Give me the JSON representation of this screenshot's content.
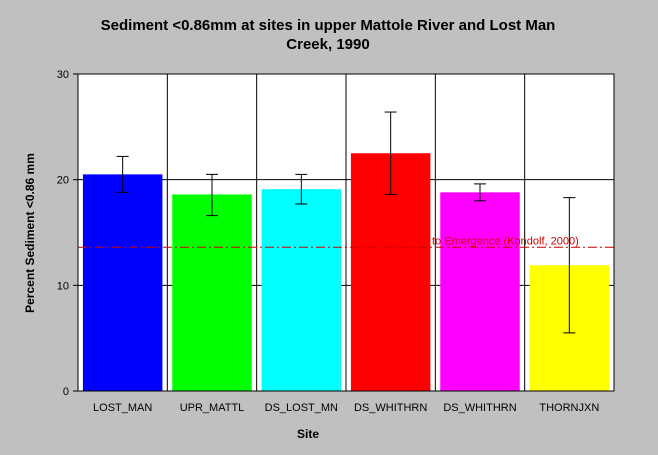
{
  "chart_data": {
    "type": "bar",
    "title_line1": "Sediment <0.86mm at sites in upper Mattole River and Lost Man",
    "title_line2": "Creek, 1990",
    "xlabel": "Site",
    "ylabel": "Percent Sediment <0.86 mm",
    "ylim": [
      0,
      30
    ],
    "yticks": [
      0,
      10,
      20,
      30
    ],
    "grid": true,
    "categories": [
      "LOST_MAN",
      "UPR_MATTL",
      "DS_LOST_MN",
      "DS_WHITHRN",
      "DS_WHITHRN",
      "THORNJXN"
    ],
    "values": [
      20.5,
      18.6,
      19.1,
      22.5,
      18.8,
      11.9
    ],
    "error_low": [
      18.8,
      16.6,
      17.7,
      18.6,
      18.0,
      5.5
    ],
    "error_high": [
      22.2,
      20.5,
      20.5,
      26.4,
      19.6,
      18.3
    ],
    "colors": [
      "#0000ff",
      "#00ff00",
      "#00ffff",
      "#ff0000",
      "#ff00ff",
      "#ffff00"
    ],
    "reference_line": {
      "value": 13.6,
      "label": "to Emergence (Kondolf, 2000)",
      "color": "#cc0000"
    }
  }
}
